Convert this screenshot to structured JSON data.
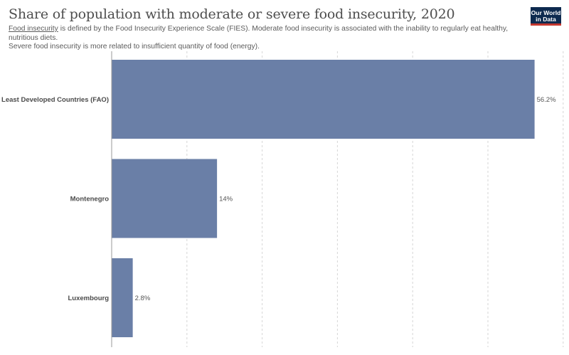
{
  "header": {
    "title": "Share of population with moderate or severe food insecurity, 2020",
    "subtitle_link": "Food insecurity",
    "subtitle_line1": " is defined by the Food Insecurity Experience Scale (FIES). Moderate food insecurity is associated with the inability to regularly eat healthy, nutritious diets.",
    "subtitle_line2": "Severe food insecurity is more related to insufficient quantity of food (energy).",
    "logo_line1": "Our World",
    "logo_line2": "in Data"
  },
  "colors": {
    "bar": "#6a7fa7",
    "grid": "#d6d6d6",
    "axis": "#9a9a9a"
  },
  "chart_data": {
    "type": "bar",
    "orientation": "horizontal",
    "title": "Share of population with moderate or severe food insecurity, 2020",
    "categories": [
      "Least Developed Countries (FAO)",
      "Montenegro",
      "Luxembourg"
    ],
    "values": [
      56.2,
      14,
      2.8
    ],
    "value_labels": [
      "56.2%",
      "14%",
      "2.8%"
    ],
    "xlim": [
      0,
      60
    ],
    "grid_ticks": [
      0,
      10,
      20,
      30,
      40,
      50,
      60
    ],
    "grid": true,
    "unit": "%"
  }
}
